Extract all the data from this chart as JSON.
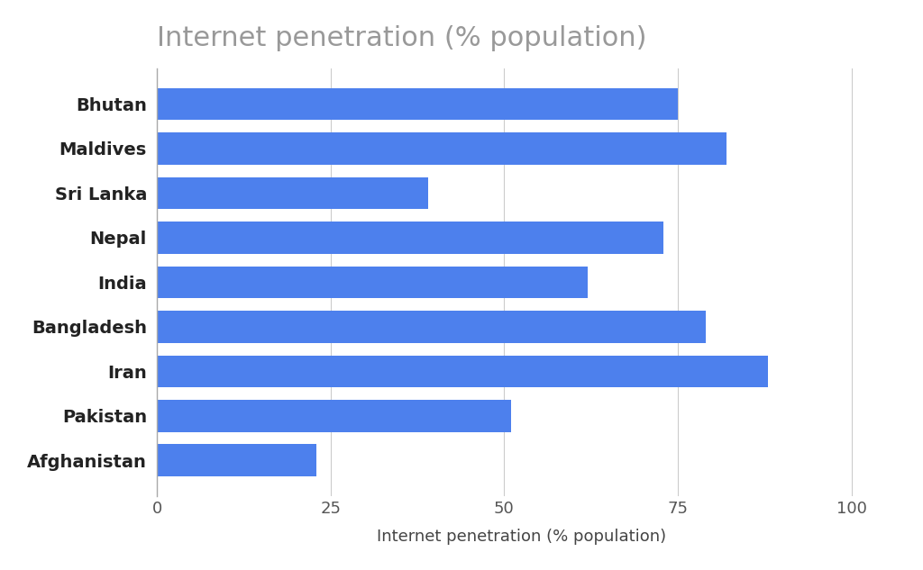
{
  "title": "Internet penetration (% population)",
  "xlabel": "Internet penetration (% population)",
  "categories": [
    "Bhutan",
    "Maldives",
    "Sri Lanka",
    "Nepal",
    "India",
    "Bangladesh",
    "Iran",
    "Pakistan",
    "Afghanistan"
  ],
  "values": [
    75,
    82,
    39,
    73,
    62,
    79,
    88,
    51,
    23
  ],
  "bar_color": "#4d80ed",
  "background_color": "#ffffff",
  "xlim": [
    0,
    105
  ],
  "xticks": [
    0,
    25,
    50,
    75,
    100
  ],
  "title_fontsize": 22,
  "label_fontsize": 13,
  "tick_fontsize": 13,
  "ytick_fontsize": 14,
  "title_color": "#999999",
  "axis_label_color": "#444444",
  "ytick_color": "#222222"
}
